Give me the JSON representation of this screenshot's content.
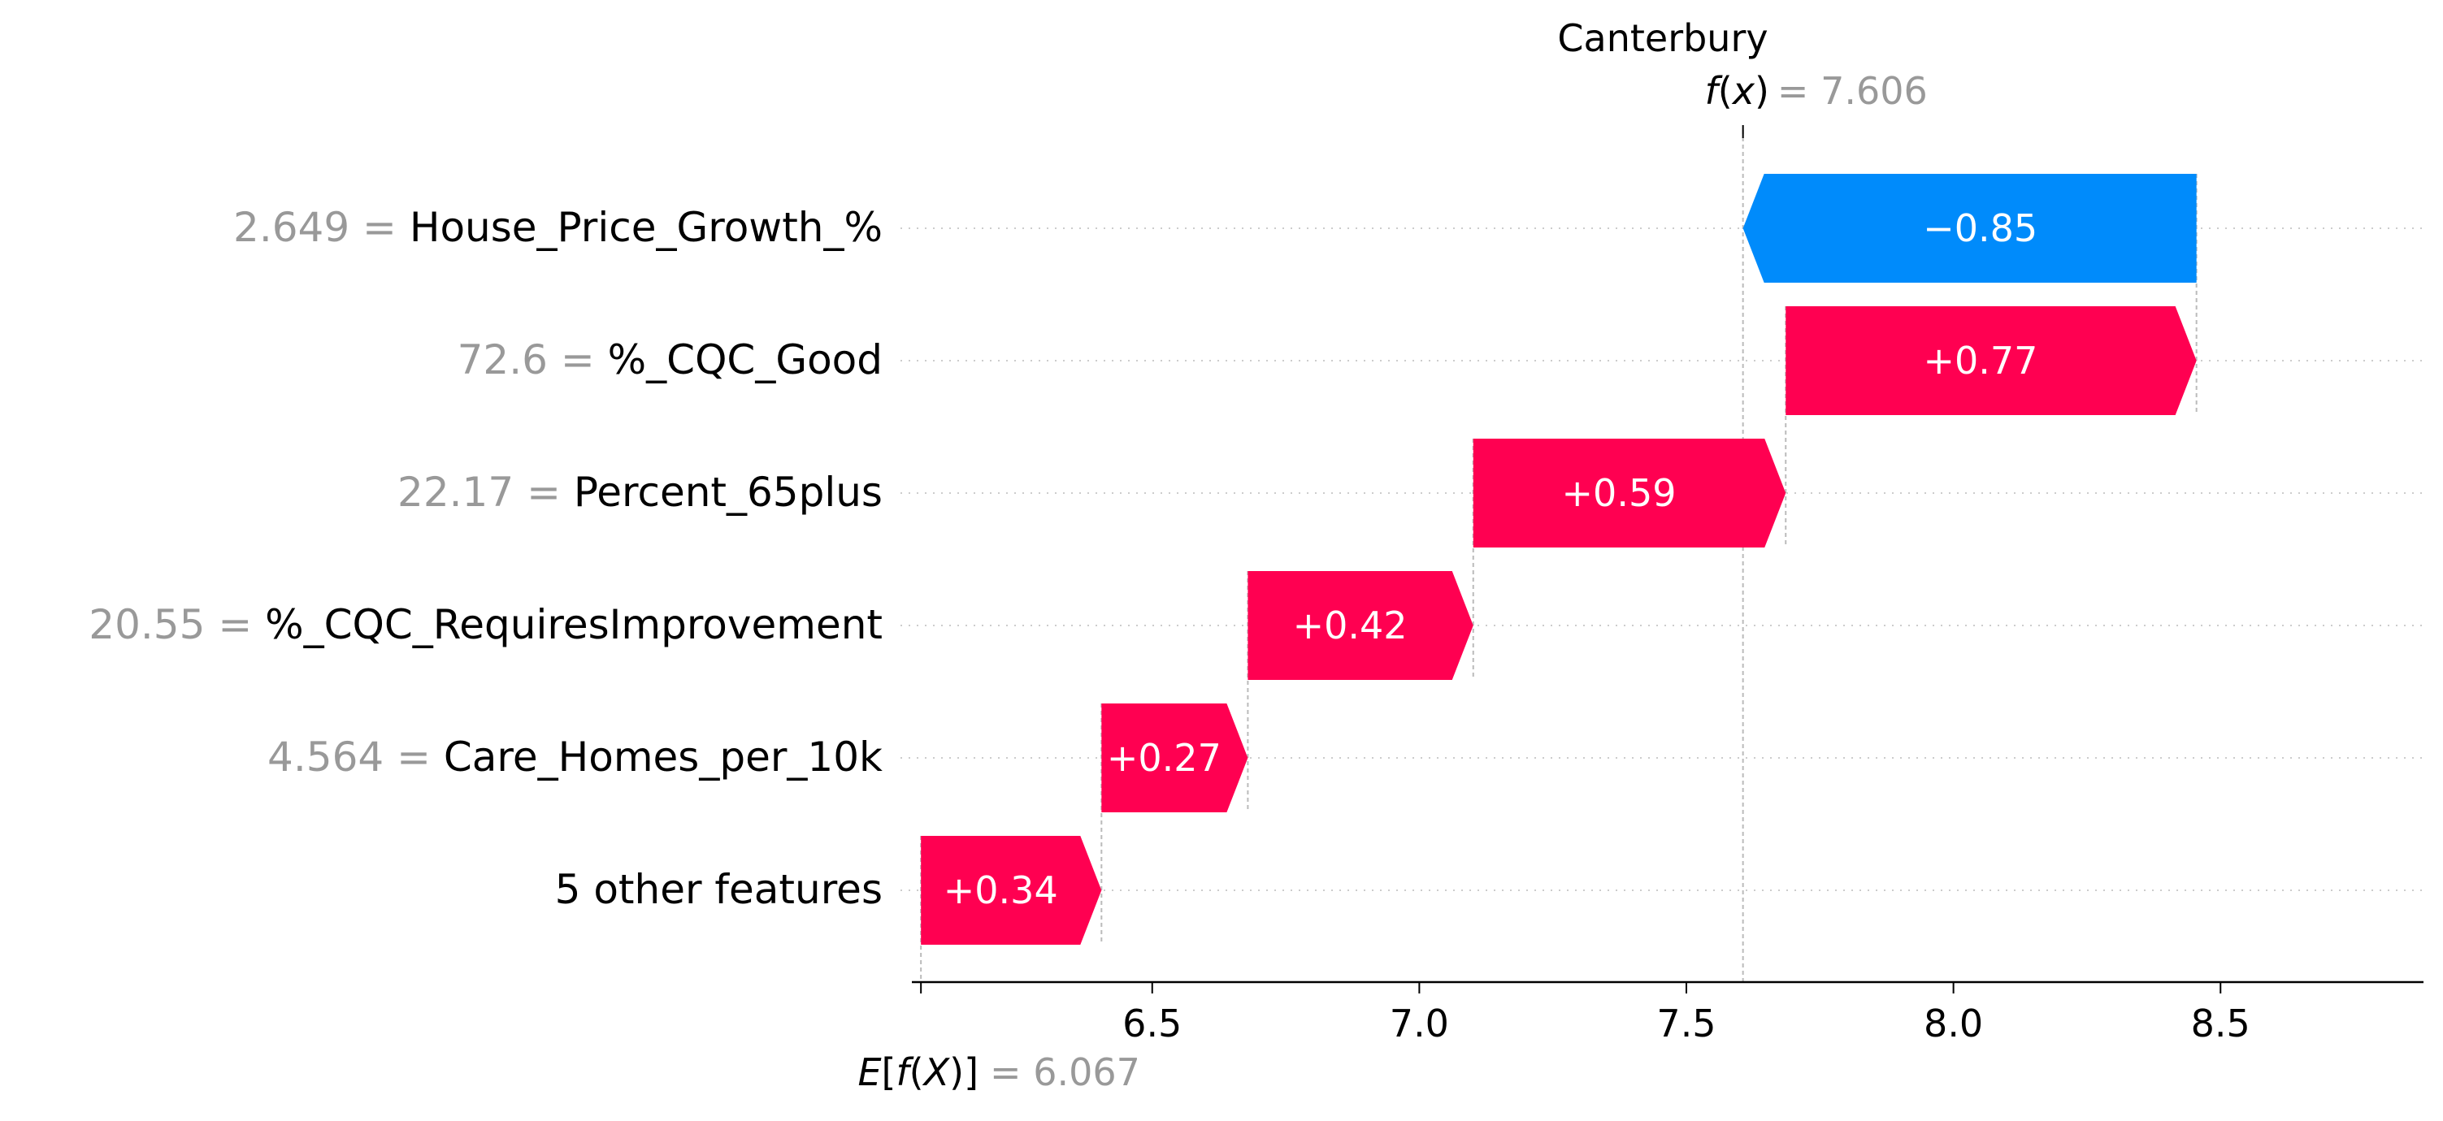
{
  "chart_data": {
    "type": "waterfall",
    "title": "Canterbury",
    "fx_value": "7.606",
    "fx_num": 7.606,
    "base_value": "6.067",
    "base_num": 6.067,
    "xlim": [
      6.05,
      8.88
    ],
    "x_ticks": [
      {
        "value": 6.5,
        "label": "6.5"
      },
      {
        "value": 7.0,
        "label": "7.0"
      },
      {
        "value": 7.5,
        "label": "7.5"
      },
      {
        "value": 8.0,
        "label": "8.0"
      },
      {
        "value": 8.5,
        "label": "8.5"
      }
    ],
    "features": [
      {
        "value_label": "2.649",
        "name": "House_Price_Growth_%",
        "start": 8.455,
        "end": 7.606,
        "contribution": -0.85,
        "display": "−0.85"
      },
      {
        "value_label": "72.6",
        "name": "%_CQC_Good",
        "start": 7.686,
        "end": 8.455,
        "contribution": 0.77,
        "display": "+0.77"
      },
      {
        "value_label": "22.17",
        "name": "Percent_65plus",
        "start": 7.101,
        "end": 7.686,
        "contribution": 0.59,
        "display": "+0.59"
      },
      {
        "value_label": "20.55",
        "name": "%_CQC_RequiresImprovement",
        "start": 6.679,
        "end": 7.101,
        "contribution": 0.42,
        "display": "+0.42"
      },
      {
        "value_label": "4.564",
        "name": "Care_Homes_per_10k",
        "start": 6.405,
        "end": 6.679,
        "contribution": 0.27,
        "display": "+0.27"
      },
      {
        "value_label": "",
        "name": "5 other features",
        "start": 6.067,
        "end": 6.405,
        "contribution": 0.34,
        "display": "+0.34"
      }
    ],
    "colors": {
      "positive": "#ff0051",
      "negative": "#008bfb",
      "value_text": "#999999",
      "label_text": "#000000",
      "bar_text": "#ffffff",
      "gridline": "#cccccc",
      "guide": "#bbbbbb",
      "axis": "#000000"
    },
    "grid": true
  }
}
